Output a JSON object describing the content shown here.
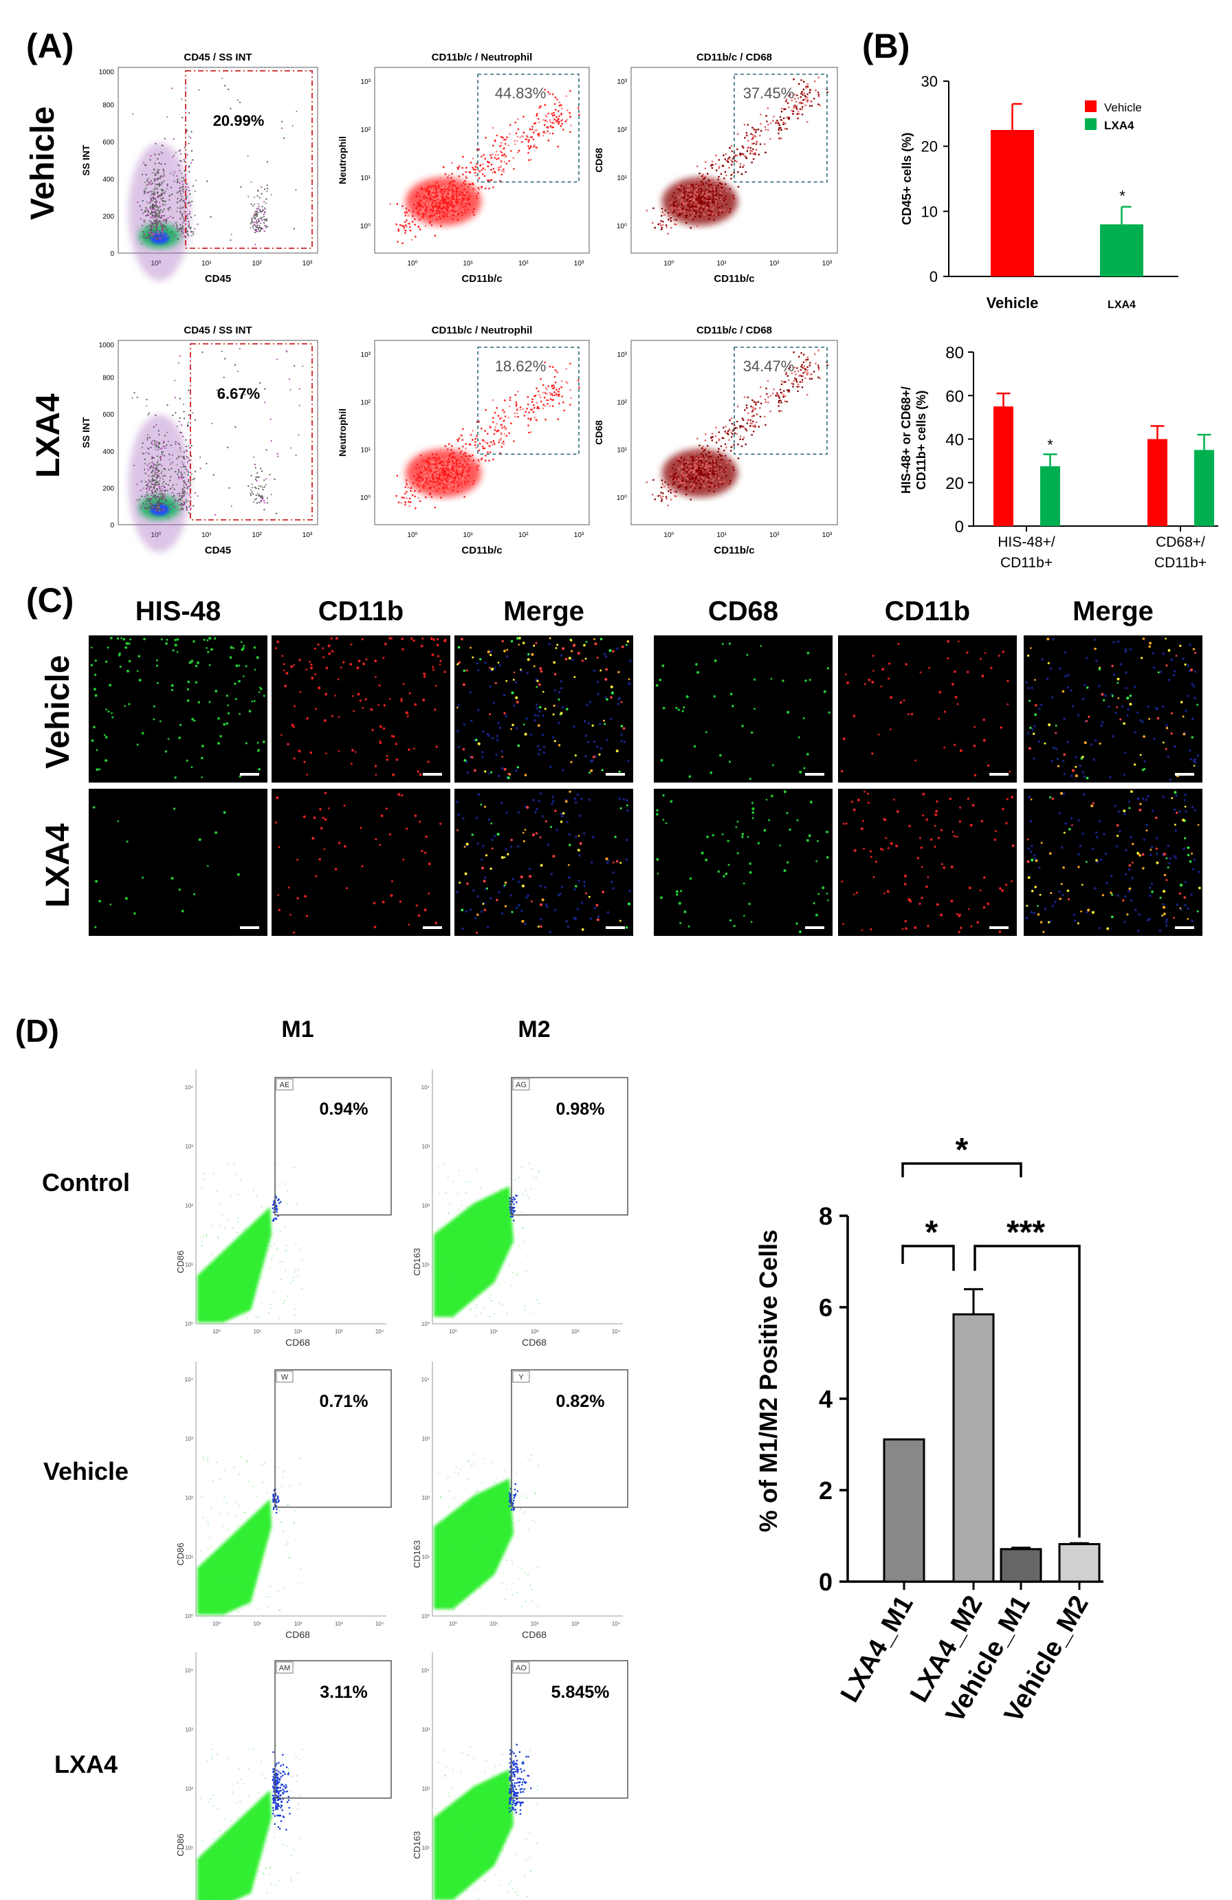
{
  "panels": {
    "A": "(A)",
    "B": "(B)",
    "C": "(C)",
    "D": "(D)"
  },
  "colors": {
    "vehicle": "#ff0000",
    "lxa4": "#00b050",
    "m1bar": "#888888",
    "m2bar": "#aaaaaa",
    "vm1bar": "#666666",
    "vm2bar": "#d0d0d0"
  },
  "panelA": {
    "rows": [
      "Vehicle",
      "LXA4"
    ],
    "plot_titles": [
      "CD45 / SS INT",
      "CD11b/c / Neutrophil",
      "CD11b/c / CD68"
    ],
    "y_labels": [
      "SS INT",
      "Neutrophil",
      "CD68"
    ],
    "x_labels": [
      "CD45",
      "CD11b/c",
      "CD11b/c"
    ],
    "lin_ticks": [
      "1000",
      "800",
      "600",
      "400",
      "200",
      "0"
    ],
    "log_ticks": [
      "10⁰",
      "10¹",
      "10²",
      "10³"
    ],
    "vehicle_pcts": [
      "20.99%",
      "44.83%",
      "37.45%"
    ],
    "lxa4_pcts": [
      "6.67%",
      "18.62%",
      "34.47%"
    ]
  },
  "panelB": {
    "legend": [
      "Vehicle",
      "LXA4"
    ],
    "chart1": {
      "ylabel": "CD45+ cells (%)",
      "ylim": [
        0,
        30
      ],
      "yticks": [
        "0",
        "10",
        "20",
        "30"
      ],
      "categories": [
        "Vehicle",
        "LXA4"
      ],
      "values": [
        22.5,
        8
      ],
      "errors": [
        4,
        2.7
      ],
      "sig": "*"
    },
    "chart2": {
      "ylabel_line1": "HIS-48+ or CD68+/",
      "ylabel_line2": "CD11b+ cells (%)",
      "ylim": [
        0,
        80
      ],
      "yticks": [
        "0",
        "20",
        "40",
        "60",
        "80"
      ],
      "groups": [
        {
          "label1": "HIS-48+/",
          "label2": "CD11b+",
          "vehicle": 55,
          "lxa4": 27.5,
          "verr": 6,
          "lerr": 5.5,
          "sig": "*"
        },
        {
          "label1": "CD68+/",
          "label2": "CD11b+",
          "vehicle": 40,
          "lxa4": 35,
          "verr": 6,
          "lerr": 7,
          "sig": ""
        }
      ]
    }
  },
  "panelC": {
    "headers": [
      "HIS-48",
      "CD11b",
      "Merge",
      "CD68",
      "CD11b",
      "Merge"
    ],
    "rows": [
      "Vehicle",
      "LXA4"
    ]
  },
  "panelD": {
    "cols": [
      "M1",
      "M2"
    ],
    "rows": [
      "Control",
      "Vehicle",
      "LXA4"
    ],
    "m1_ylabel": "CD86",
    "m2_ylabel": "CD163",
    "xlabel": "CD68",
    "gates": [
      [
        "AE",
        "AG"
      ],
      [
        "W",
        "Y"
      ],
      [
        "AM",
        "AO"
      ]
    ],
    "pcts": [
      [
        "0.94%",
        "0.98%"
      ],
      [
        "0.71%",
        "0.82%"
      ],
      [
        "3.11%",
        "5.845%"
      ]
    ],
    "ticks": [
      "10⁰",
      "10¹",
      "10²",
      "10³",
      "10⁴"
    ]
  },
  "chart_data": {
    "type": "bar",
    "title": "",
    "ylabel": "% of M1/M2 Positive Cells",
    "xlabel": "",
    "ylim": [
      0,
      8
    ],
    "yticks": [
      "0",
      "2",
      "4",
      "6",
      "8"
    ],
    "categories": [
      "LXA4_M1",
      "LXA4_M2",
      "Vehicle_M1",
      "Vehicle_M2"
    ],
    "values": [
      3.11,
      5.845,
      0.71,
      0.82
    ],
    "errors": [
      0,
      0.55,
      0.03,
      0.02
    ],
    "significance": [
      "*",
      "*",
      "***"
    ]
  }
}
